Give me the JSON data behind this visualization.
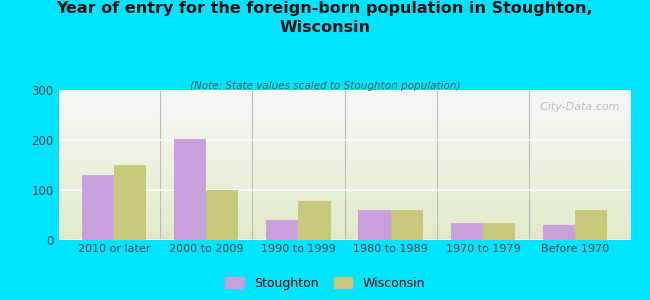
{
  "categories": [
    "2010 or later",
    "2000 to 2009",
    "1990 to 1999",
    "1980 to 1989",
    "1970 to 1979",
    "Before 1970"
  ],
  "stoughton_values": [
    130,
    203,
    40,
    60,
    35,
    30
  ],
  "wisconsin_values": [
    150,
    100,
    78,
    60,
    35,
    60
  ],
  "stoughton_color": "#c9a0dc",
  "wisconsin_color": "#c8c87a",
  "title": "Year of entry for the foreign-born population in Stoughton,\nWisconsin",
  "subtitle": "(Note: State values scaled to Stoughton population)",
  "ylim": [
    0,
    300
  ],
  "yticks": [
    0,
    100,
    200,
    300
  ],
  "background_outer": "#00e5ff",
  "watermark": "  City-Data.com",
  "legend_labels": [
    "Stoughton",
    "Wisconsin"
  ],
  "bar_width": 0.35
}
